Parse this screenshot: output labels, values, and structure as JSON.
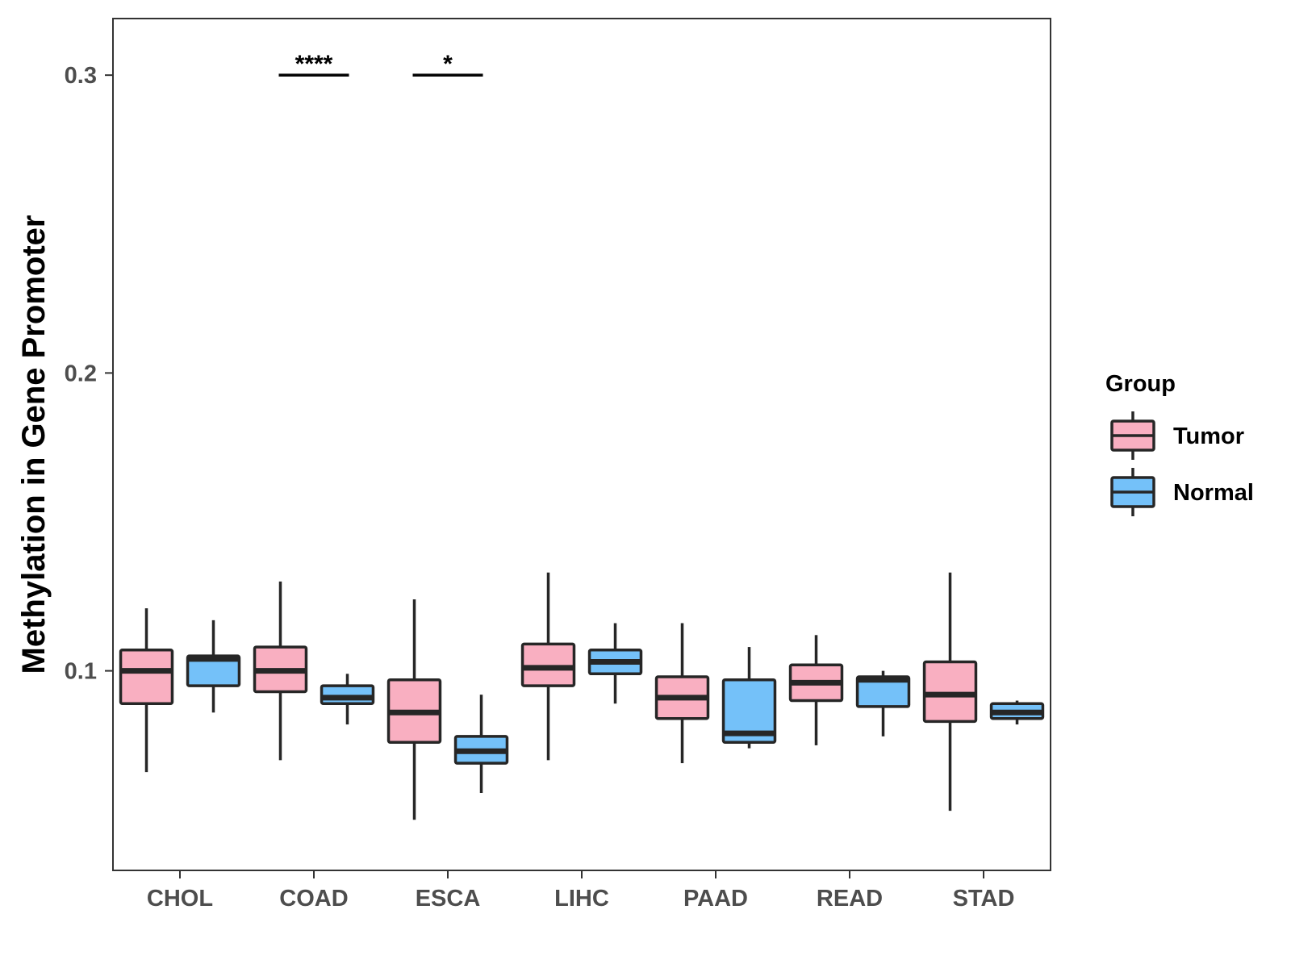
{
  "chart_data": {
    "type": "boxplot",
    "title": "",
    "xlabel": "",
    "ylabel": "Methylation in Gene Promoter",
    "ylim": [
      0.033,
      0.319
    ],
    "yticks": [
      0.1,
      0.2,
      0.3
    ],
    "ytick_labels": [
      "0.1",
      "0.2",
      "0.3"
    ],
    "categories": [
      "CHOL",
      "COAD",
      "ESCA",
      "LIHC",
      "PAAD",
      "READ",
      "STAD"
    ],
    "legend": {
      "title": "Group",
      "position": "right",
      "entries": [
        {
          "name": "Tumor",
          "color": "#F9AFC1"
        },
        {
          "name": "Normal",
          "color": "#74C1F9"
        }
      ]
    },
    "series": [
      {
        "name": "Tumor",
        "color": "#F9AFC1",
        "boxes": [
          {
            "category": "CHOL",
            "whisker_low": 0.066,
            "q1": 0.089,
            "median": 0.1,
            "q3": 0.107,
            "whisker_high": 0.121
          },
          {
            "category": "COAD",
            "whisker_low": 0.07,
            "q1": 0.093,
            "median": 0.1,
            "q3": 0.108,
            "whisker_high": 0.13
          },
          {
            "category": "ESCA",
            "whisker_low": 0.05,
            "q1": 0.076,
            "median": 0.086,
            "q3": 0.097,
            "whisker_high": 0.124
          },
          {
            "category": "LIHC",
            "whisker_low": 0.07,
            "q1": 0.095,
            "median": 0.101,
            "q3": 0.109,
            "whisker_high": 0.133
          },
          {
            "category": "PAAD",
            "whisker_low": 0.069,
            "q1": 0.084,
            "median": 0.091,
            "q3": 0.098,
            "whisker_high": 0.116
          },
          {
            "category": "READ",
            "whisker_low": 0.075,
            "q1": 0.09,
            "median": 0.096,
            "q3": 0.102,
            "whisker_high": 0.112
          },
          {
            "category": "STAD",
            "whisker_low": 0.053,
            "q1": 0.083,
            "median": 0.092,
            "q3": 0.103,
            "whisker_high": 0.133
          }
        ]
      },
      {
        "name": "Normal",
        "color": "#74C1F9",
        "boxes": [
          {
            "category": "CHOL",
            "whisker_low": 0.086,
            "q1": 0.095,
            "median": 0.104,
            "q3": 0.105,
            "whisker_high": 0.117
          },
          {
            "category": "COAD",
            "whisker_low": 0.082,
            "q1": 0.089,
            "median": 0.091,
            "q3": 0.095,
            "whisker_high": 0.099
          },
          {
            "category": "ESCA",
            "whisker_low": 0.059,
            "q1": 0.069,
            "median": 0.073,
            "q3": 0.078,
            "whisker_high": 0.092
          },
          {
            "category": "LIHC",
            "whisker_low": 0.089,
            "q1": 0.099,
            "median": 0.103,
            "q3": 0.107,
            "whisker_high": 0.116
          },
          {
            "category": "PAAD",
            "whisker_low": 0.074,
            "q1": 0.076,
            "median": 0.079,
            "q3": 0.097,
            "whisker_high": 0.108
          },
          {
            "category": "READ",
            "whisker_low": 0.078,
            "q1": 0.088,
            "median": 0.097,
            "q3": 0.098,
            "whisker_high": 0.1
          },
          {
            "category": "STAD",
            "whisker_low": 0.082,
            "q1": 0.084,
            "median": 0.086,
            "q3": 0.089,
            "whisker_high": 0.09
          }
        ]
      }
    ],
    "annotations": [
      {
        "category": "COAD",
        "label": "****",
        "y": 0.3
      },
      {
        "category": "ESCA",
        "label": "*",
        "y": 0.3
      }
    ]
  }
}
